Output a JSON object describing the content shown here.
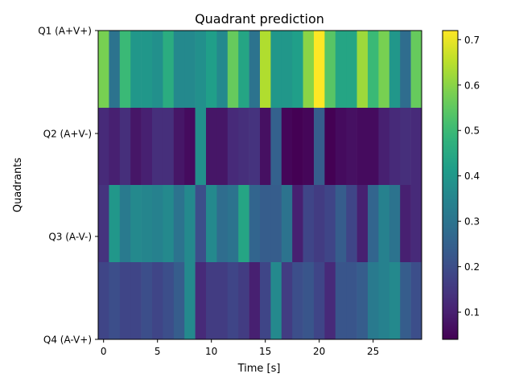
{
  "chart_data": {
    "type": "heatmap",
    "title": "Quadrant prediction",
    "xlabel": "Time [s]",
    "ylabel": "Quadrants",
    "x_ticks": [
      0,
      5,
      10,
      15,
      20,
      25
    ],
    "x_tick_labels": [
      "0",
      "5",
      "10",
      "15",
      "20",
      "25"
    ],
    "xlim": [
      -0.5,
      29.5
    ],
    "rows": [
      "Q1 (A+V+)",
      "Q2 (A+V-)",
      "Q3 (A-V-)",
      "Q4 (A-V+)"
    ],
    "time_steps": [
      0,
      1,
      2,
      3,
      4,
      5,
      6,
      7,
      8,
      9,
      10,
      11,
      12,
      13,
      14,
      15,
      16,
      17,
      18,
      19,
      20,
      21,
      22,
      23,
      24,
      25,
      26,
      27,
      28,
      29
    ],
    "values": [
      [
        0.58,
        0.3,
        0.5,
        0.4,
        0.4,
        0.38,
        0.46,
        0.36,
        0.36,
        0.38,
        0.42,
        0.36,
        0.56,
        0.44,
        0.3,
        0.64,
        0.4,
        0.4,
        0.42,
        0.6,
        0.72,
        0.54,
        0.44,
        0.44,
        0.62,
        0.5,
        0.58,
        0.4,
        0.28,
        0.56
      ],
      [
        0.12,
        0.1,
        0.13,
        0.08,
        0.1,
        0.13,
        0.13,
        0.08,
        0.06,
        0.38,
        0.08,
        0.08,
        0.12,
        0.13,
        0.14,
        0.07,
        0.25,
        0.05,
        0.04,
        0.05,
        0.24,
        0.04,
        0.06,
        0.07,
        0.06,
        0.06,
        0.1,
        0.12,
        0.13,
        0.12
      ],
      [
        0.14,
        0.4,
        0.32,
        0.36,
        0.35,
        0.34,
        0.36,
        0.3,
        0.36,
        0.2,
        0.36,
        0.28,
        0.3,
        0.44,
        0.26,
        0.24,
        0.24,
        0.3,
        0.1,
        0.18,
        0.16,
        0.18,
        0.24,
        0.18,
        0.1,
        0.26,
        0.34,
        0.3,
        0.1,
        0.12
      ],
      [
        0.18,
        0.2,
        0.18,
        0.18,
        0.2,
        0.18,
        0.2,
        0.24,
        0.36,
        0.12,
        0.16,
        0.16,
        0.18,
        0.16,
        0.1,
        0.18,
        0.36,
        0.16,
        0.2,
        0.22,
        0.18,
        0.12,
        0.22,
        0.22,
        0.24,
        0.32,
        0.34,
        0.36,
        0.24,
        0.2
      ]
    ],
    "colorbar": {
      "colormap": "viridis",
      "vmin": 0.04,
      "vmax": 0.72,
      "ticks": [
        0.1,
        0.2,
        0.3,
        0.4,
        0.5,
        0.6,
        0.7
      ],
      "tick_labels": [
        "0.1",
        "0.2",
        "0.3",
        "0.4",
        "0.5",
        "0.6",
        "0.7"
      ]
    }
  }
}
